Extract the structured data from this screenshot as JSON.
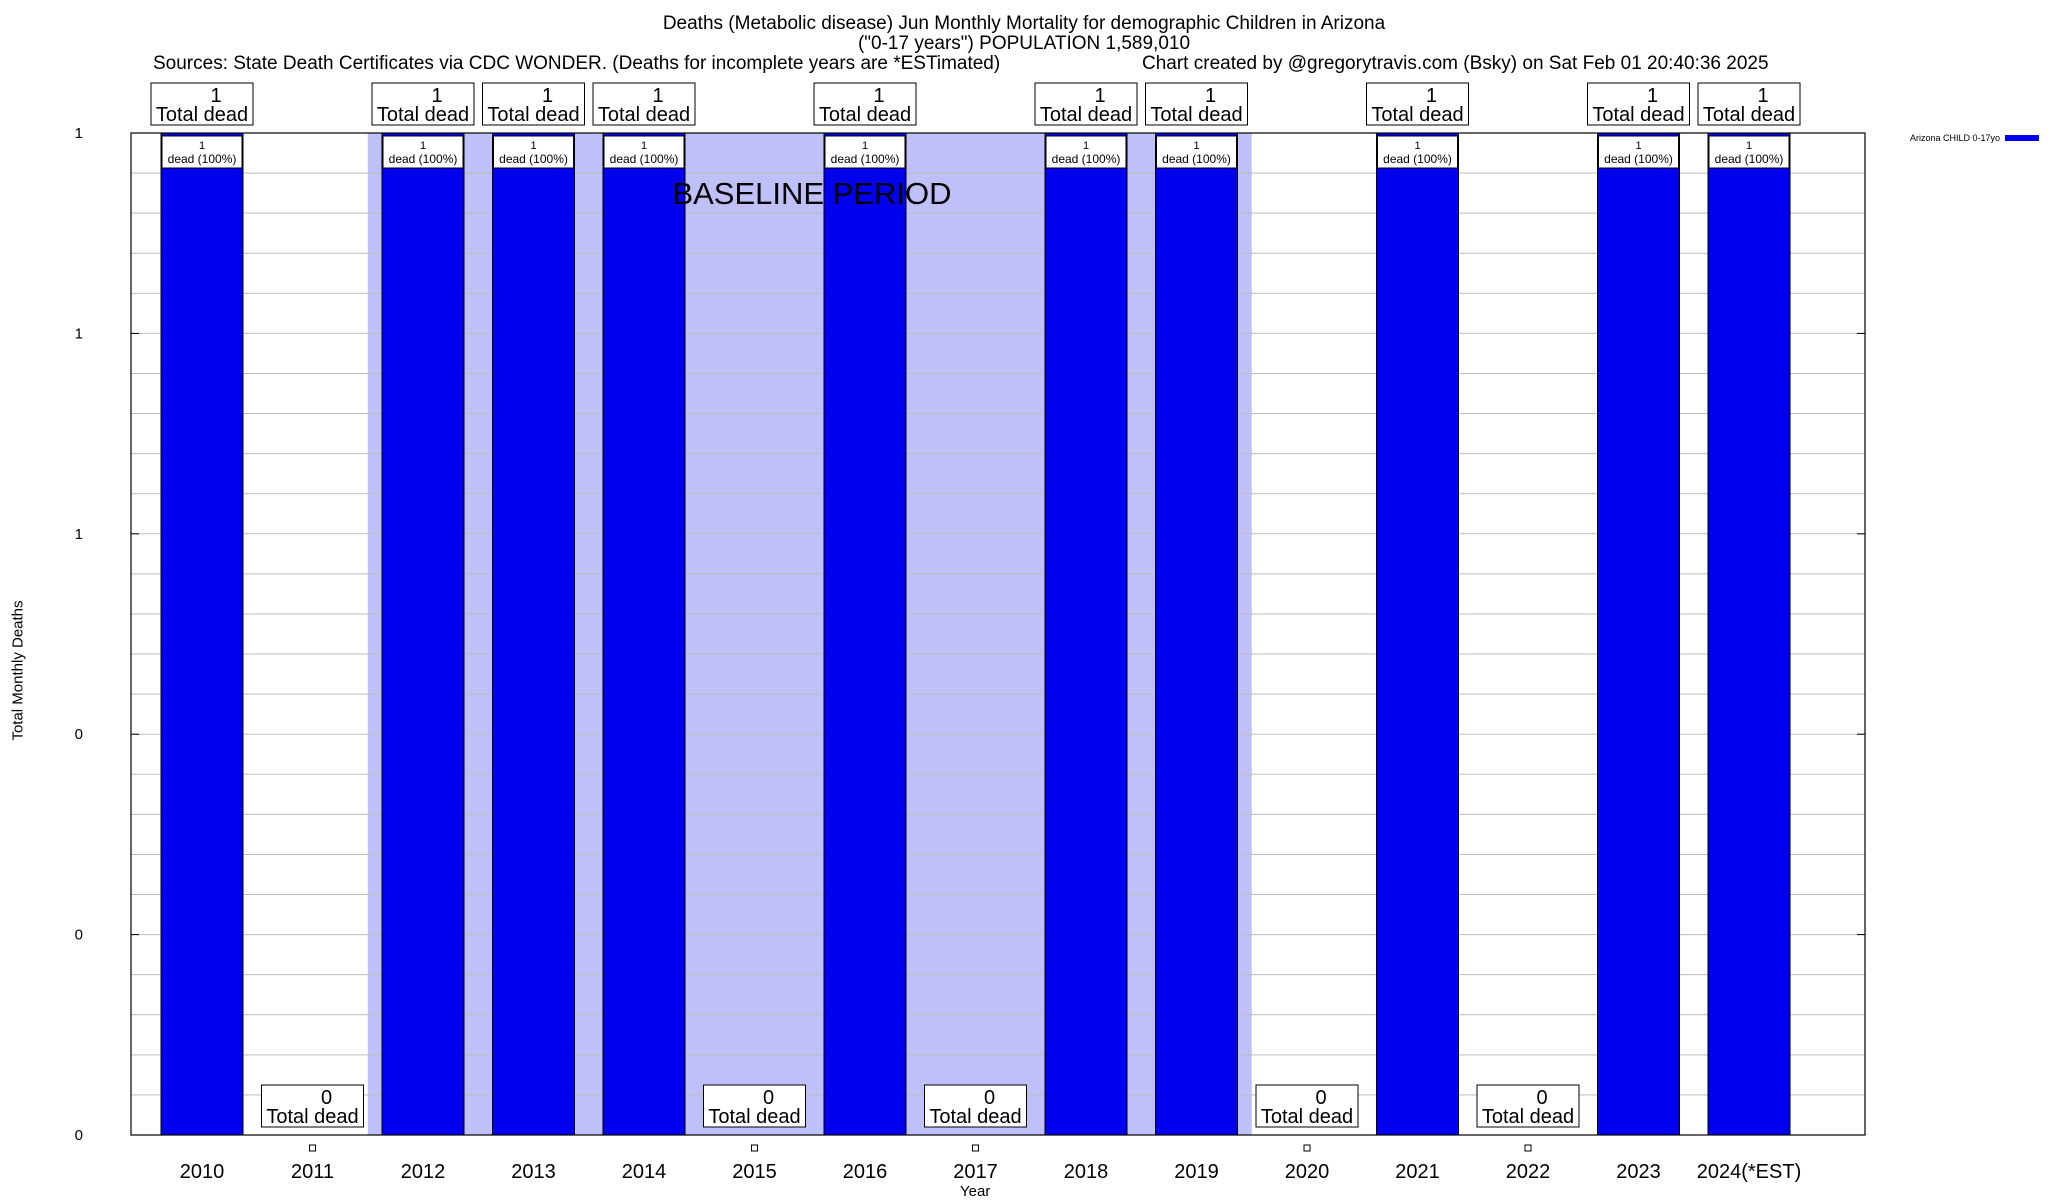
{
  "chart_data": {
    "type": "bar",
    "title_lines": [
      "Deaths (Metabolic disease) Jun Monthly Mortality for demographic Children in Arizona",
      "(\"0-17 years\") POPULATION 1,589,010"
    ],
    "source_text": "Sources: State Death Certificates via CDC WONDER. (Deaths for incomplete years are *ESTimated)",
    "credit_text": "Chart created by @gregorytravis.com (Bsky) on Sat Feb 01 20:40:36 2025",
    "xlabel": "Year",
    "ylabel": "Total Monthly Deaths",
    "categories": [
      "2010",
      "2011",
      "2012",
      "2013",
      "2014",
      "2015",
      "2016",
      "2017",
      "2018",
      "2019",
      "2020",
      "2021",
      "2022",
      "2023",
      "2024(*EST)"
    ],
    "series": [
      {
        "name": "Arizona CHILD 0-17yo",
        "color": "#0000ee",
        "values": [
          1,
          0,
          1,
          1,
          1,
          0,
          1,
          0,
          1,
          1,
          0,
          1,
          0,
          1,
          1
        ]
      }
    ],
    "top_labels": [
      "1\nTotal dead",
      "0\nTotal dead",
      "1\nTotal dead",
      "1\nTotal dead",
      "1\nTotal dead",
      "0\nTotal dead",
      "1\nTotal dead",
      "0\nTotal dead",
      "1\nTotal dead",
      "1\nTotal dead",
      "0\nTotal dead",
      "1\nTotal dead",
      "0\nTotal dead",
      "1\nTotal dead",
      "1\nTotal dead"
    ],
    "inner_labels": [
      "1\ndead (100%)",
      "",
      "1\ndead (100%)",
      "1\ndead (100%)",
      "1\ndead (100%)",
      "",
      "1\ndead (100%)",
      "",
      "1\ndead (100%)",
      "1\ndead (100%)",
      "",
      "1\ndead (100%)",
      "",
      "1\ndead (100%)",
      "1\ndead (100%)"
    ],
    "ylim": [
      0,
      1
    ],
    "ytick_labels": [
      "0",
      "0",
      "0",
      "1",
      "1",
      "1"
    ],
    "baseline_label": "BASELINE PERIOD",
    "baseline_from": "2012",
    "baseline_to": "2019",
    "baseline_color": "#c0c0f8",
    "grid": true,
    "legend": "top-right"
  }
}
